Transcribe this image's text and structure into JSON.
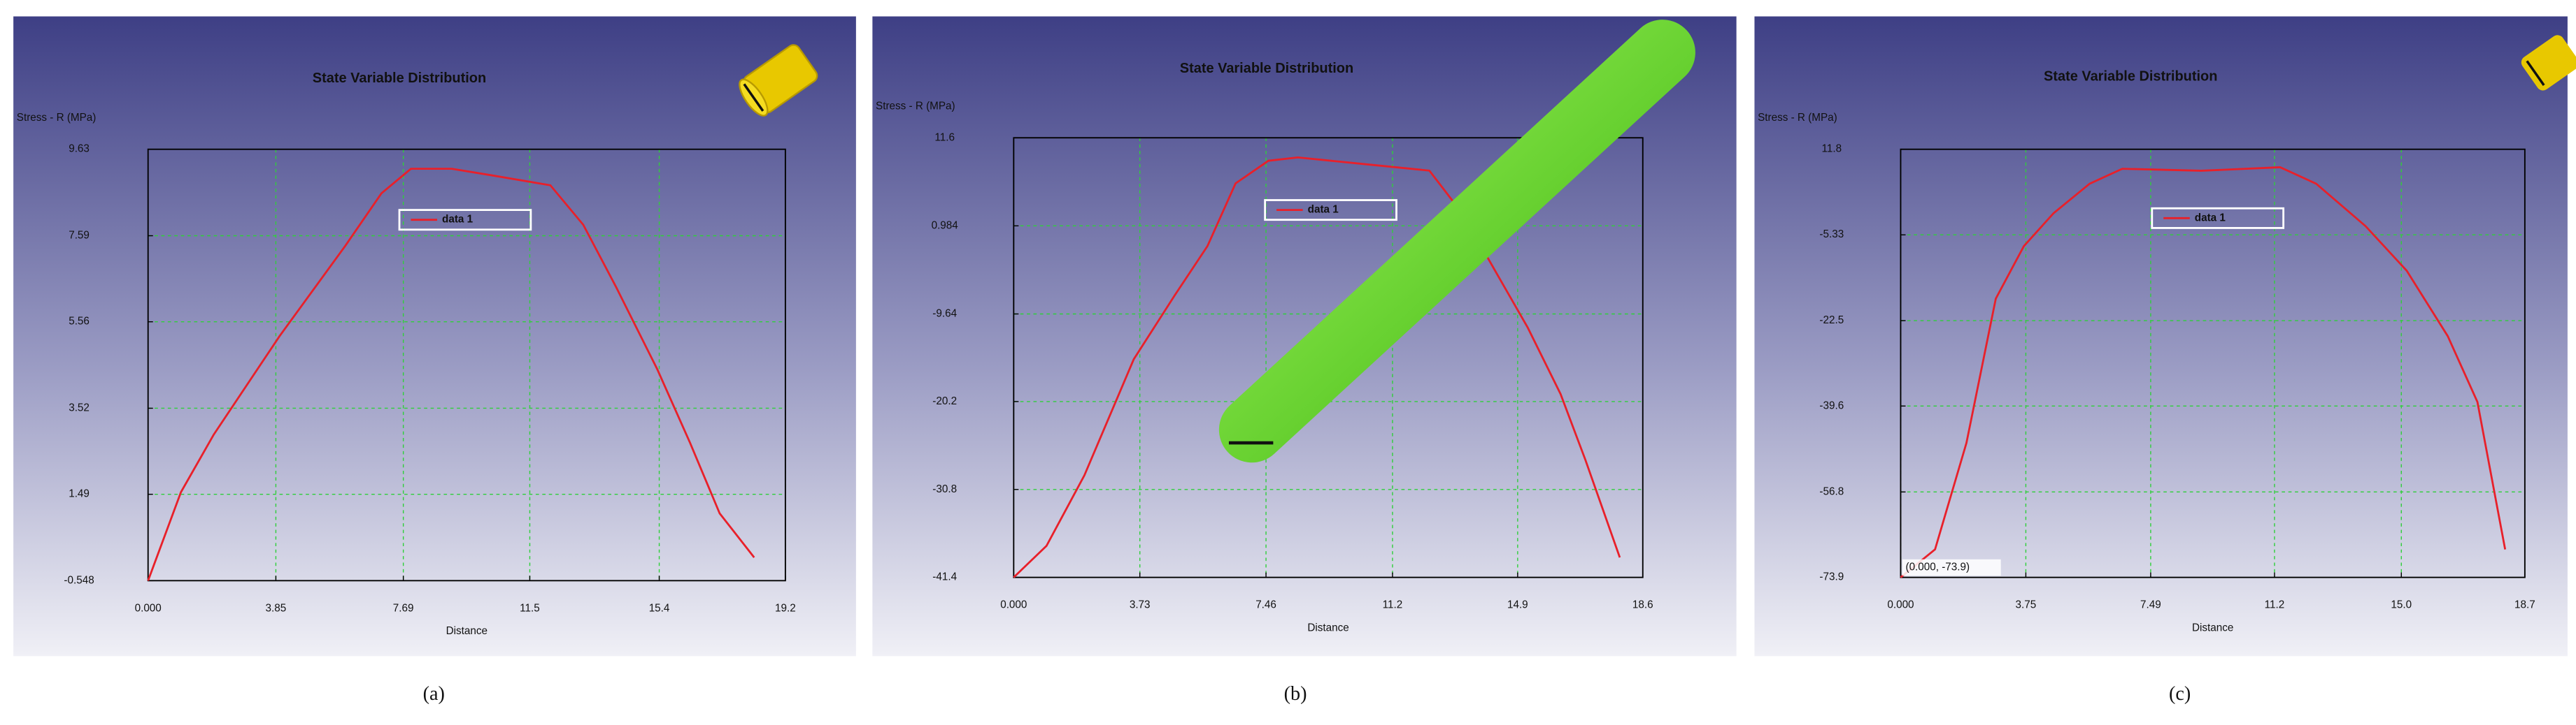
{
  "chart_data": [
    {
      "type": "line",
      "title": "State Variable Distribution",
      "y_label": "Stress - R (MPa)",
      "x_label": "Distance",
      "caption": "(a)",
      "x": [
        0,
        0.99,
        1.98,
        3.96,
        5.94,
        7.03,
        7.92,
        9.15,
        10.39,
        12.12,
        13.11,
        14.1,
        15.34,
        16.33,
        17.22,
        18.26
      ],
      "series": [
        {
          "name": "data 1",
          "color": "#e8202a",
          "values": [
            -0.548,
            1.54,
            2.9,
            5.22,
            7.35,
            8.59,
            9.17,
            9.17,
            9.01,
            8.78,
            7.85,
            6.38,
            4.44,
            2.7,
            1.04,
            0.0
          ]
        }
      ],
      "xlim": [
        0,
        19.2
      ],
      "ylim": [
        -0.548,
        9.63
      ],
      "xticks": [
        {
          "value": 0,
          "label": "0.000"
        },
        3.85,
        7.69,
        11.5,
        15.4,
        19.2
      ],
      "yticks": [
        -0.548,
        1.49,
        3.52,
        5.56,
        7.59,
        9.63
      ],
      "grid": true
    },
    {
      "type": "line",
      "title": "State Variable Distribution",
      "y_label": "Stress - R (MPa)",
      "x_label": "Distance",
      "caption": "(b)",
      "x": [
        0,
        0.97,
        2.09,
        3.55,
        4.76,
        5.73,
        6.56,
        7.53,
        8.4,
        10.34,
        12.29,
        13.26,
        14.23,
        15.2,
        16.17,
        16.9,
        17.92
      ],
      "series": [
        {
          "name": "data 1",
          "color": "#e8202a",
          "values": [
            -41.4,
            -37.6,
            -29.1,
            -15.1,
            -7.4,
            -1.45,
            6.1,
            8.83,
            9.23,
            8.44,
            7.64,
            2.5,
            -4.4,
            -11.3,
            -19.3,
            -27.2,
            -39.0
          ]
        }
      ],
      "xlim": [
        0,
        18.6
      ],
      "ylim": [
        -41.4,
        11.6
      ],
      "xticks": [
        {
          "value": 0,
          "label": "0.000"
        },
        3.73,
        7.46,
        11.2,
        14.9,
        18.6
      ],
      "yticks": [
        -41.4,
        -30.8,
        -20.2,
        -9.64,
        0.984,
        11.6
      ],
      "grid": true
    },
    {
      "type": "line",
      "title": "State Variable Distribution",
      "y_label": "Stress - R (MPa)",
      "x_label": "Distance",
      "caption": "(c)",
      "annotation": "(0.000, -73.9)",
      "x": [
        0,
        1.03,
        1.97,
        2.85,
        3.69,
        4.58,
        5.66,
        6.64,
        9.0,
        11.37,
        12.45,
        13.93,
        15.16,
        16.39,
        17.28,
        18.11
      ],
      "series": [
        {
          "name": "data 1",
          "color": "#e8202a",
          "values": [
            -73.9,
            -68.3,
            -47.0,
            -18.1,
            -7.6,
            -1.0,
            4.9,
            7.9,
            7.5,
            8.2,
            4.9,
            -3.6,
            -12.5,
            -25.6,
            -38.8,
            -68.3
          ]
        }
      ],
      "xlim": [
        0,
        18.7
      ],
      "ylim": [
        -73.9,
        11.8
      ],
      "xticks": [
        {
          "value": 0,
          "label": "0.000"
        },
        3.75,
        7.49,
        11.2,
        {
          "value": 15,
          "label": "15.0"
        },
        18.7
      ],
      "yticks": [
        -73.9,
        -56.8,
        -39.6,
        -22.5,
        -5.33,
        11.8
      ],
      "grid": true
    }
  ]
}
